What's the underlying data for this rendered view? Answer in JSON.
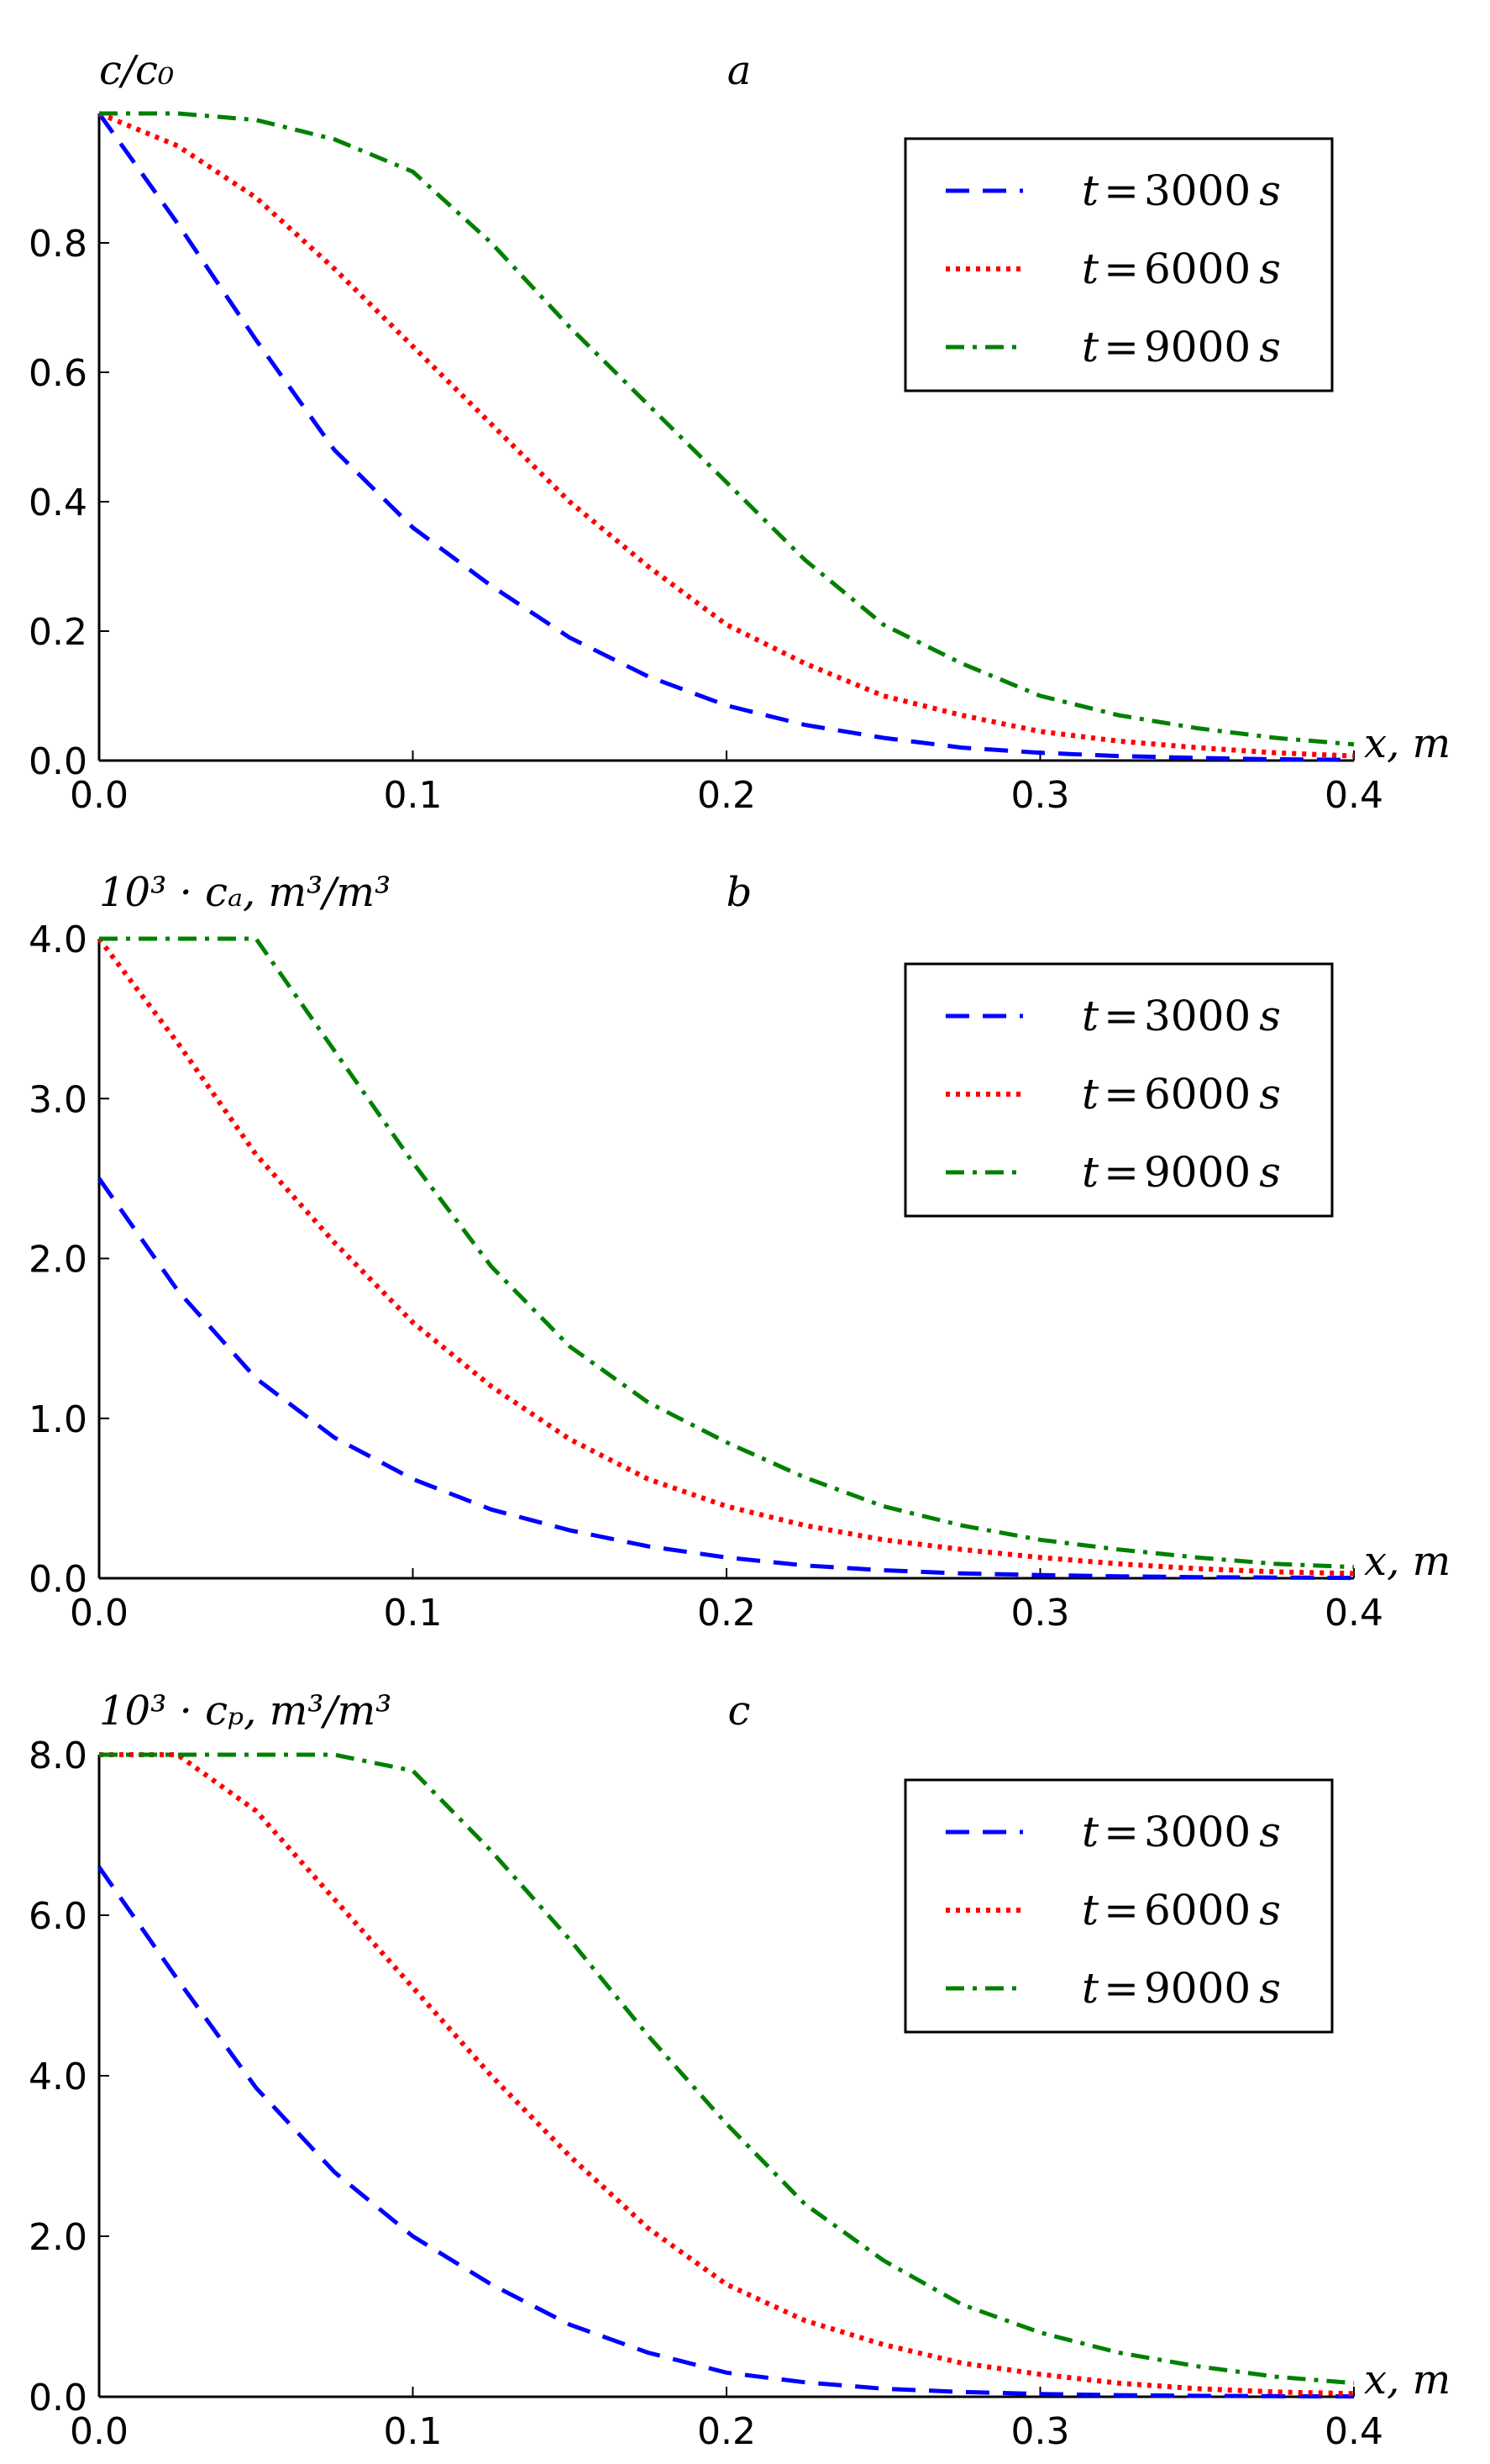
{
  "chart_data": [
    {
      "type": "line",
      "panel_label": "a",
      "ylabel": "c/c₀",
      "xlabel": "x, m",
      "xlim": [
        0,
        0.4
      ],
      "ylim": [
        0,
        1.0
      ],
      "xticks": [
        "0.0",
        "0.1",
        "0.2",
        "0.3",
        "0.4"
      ],
      "yticks": [
        0.0,
        0.2,
        0.4,
        0.6,
        0.8
      ],
      "ytick_labels": [
        "0.0",
        "0.2",
        "0.4",
        "0.6",
        "0.8"
      ],
      "legend_position": "top-right",
      "x": [
        0.0,
        0.025,
        0.05,
        0.075,
        0.1,
        0.125,
        0.15,
        0.175,
        0.2,
        0.225,
        0.25,
        0.275,
        0.3,
        0.325,
        0.35,
        0.375,
        0.4
      ],
      "series": [
        {
          "name": "t = 3000 s",
          "t": "t",
          "eq": "=",
          "value": "3000",
          "unit": "s",
          "style": "dashed",
          "color": "#0000ff",
          "values": [
            1.0,
            0.83,
            0.65,
            0.48,
            0.36,
            0.27,
            0.19,
            0.13,
            0.085,
            0.055,
            0.035,
            0.02,
            0.012,
            0.007,
            0.004,
            0.002,
            0.001
          ]
        },
        {
          "name": "t = 6000 s",
          "t": "t",
          "eq": "=",
          "value": "6000",
          "unit": "s",
          "style": "dotted",
          "color": "#ff0000",
          "values": [
            1.0,
            0.95,
            0.87,
            0.76,
            0.64,
            0.52,
            0.4,
            0.3,
            0.21,
            0.15,
            0.1,
            0.07,
            0.045,
            0.03,
            0.02,
            0.012,
            0.007
          ]
        },
        {
          "name": "t = 9000 s",
          "t": "t",
          "eq": "=",
          "value": "9000",
          "unit": "s",
          "style": "dashdot",
          "color": "#008000",
          "values": [
            1.0,
            1.0,
            0.99,
            0.96,
            0.91,
            0.8,
            0.67,
            0.55,
            0.43,
            0.31,
            0.21,
            0.15,
            0.1,
            0.07,
            0.05,
            0.035,
            0.025
          ]
        }
      ]
    },
    {
      "type": "line",
      "panel_label": "b",
      "ylabel": "10³ · cₐ, m³/m³",
      "xlabel": "x, m",
      "xlim": [
        0,
        0.4
      ],
      "ylim": [
        0,
        4.0
      ],
      "xticks": [
        "0.0",
        "0.1",
        "0.2",
        "0.3",
        "0.4"
      ],
      "yticks": [
        0.0,
        1.0,
        2.0,
        3.0,
        4.0
      ],
      "ytick_labels": [
        "0.0",
        "1.0",
        "2.0",
        "3.0",
        "4.0"
      ],
      "legend_position": "top-right",
      "x": [
        0.0,
        0.025,
        0.05,
        0.075,
        0.1,
        0.125,
        0.15,
        0.175,
        0.2,
        0.225,
        0.25,
        0.275,
        0.3,
        0.325,
        0.35,
        0.375,
        0.4
      ],
      "series": [
        {
          "name": "t = 3000 s",
          "t": "t",
          "eq": "=",
          "value": "3000",
          "unit": "s",
          "style": "dashed",
          "color": "#0000ff",
          "values": [
            2.5,
            1.8,
            1.25,
            0.88,
            0.62,
            0.43,
            0.3,
            0.2,
            0.13,
            0.08,
            0.05,
            0.03,
            0.02,
            0.012,
            0.007,
            0.004,
            0.002
          ]
        },
        {
          "name": "t = 6000 s",
          "t": "t",
          "eq": "=",
          "value": "6000",
          "unit": "s",
          "style": "dotted",
          "color": "#ff0000",
          "values": [
            4.0,
            3.35,
            2.65,
            2.1,
            1.6,
            1.2,
            0.87,
            0.62,
            0.45,
            0.33,
            0.24,
            0.18,
            0.13,
            0.09,
            0.06,
            0.04,
            0.03
          ]
        },
        {
          "name": "t = 9000 s",
          "t": "t",
          "eq": "=",
          "value": "9000",
          "unit": "s",
          "style": "dashdot",
          "color": "#008000",
          "values": [
            4.0,
            4.0,
            4.0,
            3.3,
            2.6,
            1.95,
            1.45,
            1.1,
            0.85,
            0.63,
            0.45,
            0.33,
            0.24,
            0.18,
            0.13,
            0.09,
            0.07
          ]
        }
      ]
    },
    {
      "type": "line",
      "panel_label": "c",
      "ylabel": "10³ · cₚ, m³/m³",
      "xlabel": "x, m",
      "xlim": [
        0,
        0.4
      ],
      "ylim": [
        0,
        8.0
      ],
      "xticks": [
        "0.0",
        "0.1",
        "0.2",
        "0.3",
        "0.4"
      ],
      "yticks": [
        0.0,
        2.0,
        4.0,
        6.0,
        8.0
      ],
      "ytick_labels": [
        "0.0",
        "2.0",
        "4.0",
        "6.0",
        "8.0"
      ],
      "legend_position": "top-right",
      "x": [
        0.0,
        0.025,
        0.05,
        0.075,
        0.1,
        0.125,
        0.15,
        0.175,
        0.2,
        0.225,
        0.25,
        0.275,
        0.3,
        0.325,
        0.35,
        0.375,
        0.4
      ],
      "series": [
        {
          "name": "t = 3000 s",
          "t": "t",
          "eq": "=",
          "value": "3000",
          "unit": "s",
          "style": "dashed",
          "color": "#0000ff",
          "values": [
            6.6,
            5.2,
            3.85,
            2.8,
            2.0,
            1.4,
            0.9,
            0.55,
            0.3,
            0.18,
            0.1,
            0.06,
            0.035,
            0.02,
            0.012,
            0.007,
            0.004
          ]
        },
        {
          "name": "t = 6000 s",
          "t": "t",
          "eq": "=",
          "value": "6000",
          "unit": "s",
          "style": "dotted",
          "color": "#ff0000",
          "values": [
            8.0,
            8.0,
            7.3,
            6.2,
            5.1,
            4.0,
            3.0,
            2.1,
            1.4,
            0.95,
            0.65,
            0.42,
            0.28,
            0.17,
            0.1,
            0.06,
            0.04
          ]
        },
        {
          "name": "t = 9000 s",
          "t": "t",
          "eq": "=",
          "value": "9000",
          "unit": "s",
          "style": "dashdot",
          "color": "#008000",
          "values": [
            8.0,
            8.0,
            8.0,
            8.0,
            7.8,
            6.8,
            5.7,
            4.5,
            3.4,
            2.4,
            1.7,
            1.15,
            0.8,
            0.55,
            0.38,
            0.25,
            0.17
          ]
        }
      ]
    }
  ]
}
